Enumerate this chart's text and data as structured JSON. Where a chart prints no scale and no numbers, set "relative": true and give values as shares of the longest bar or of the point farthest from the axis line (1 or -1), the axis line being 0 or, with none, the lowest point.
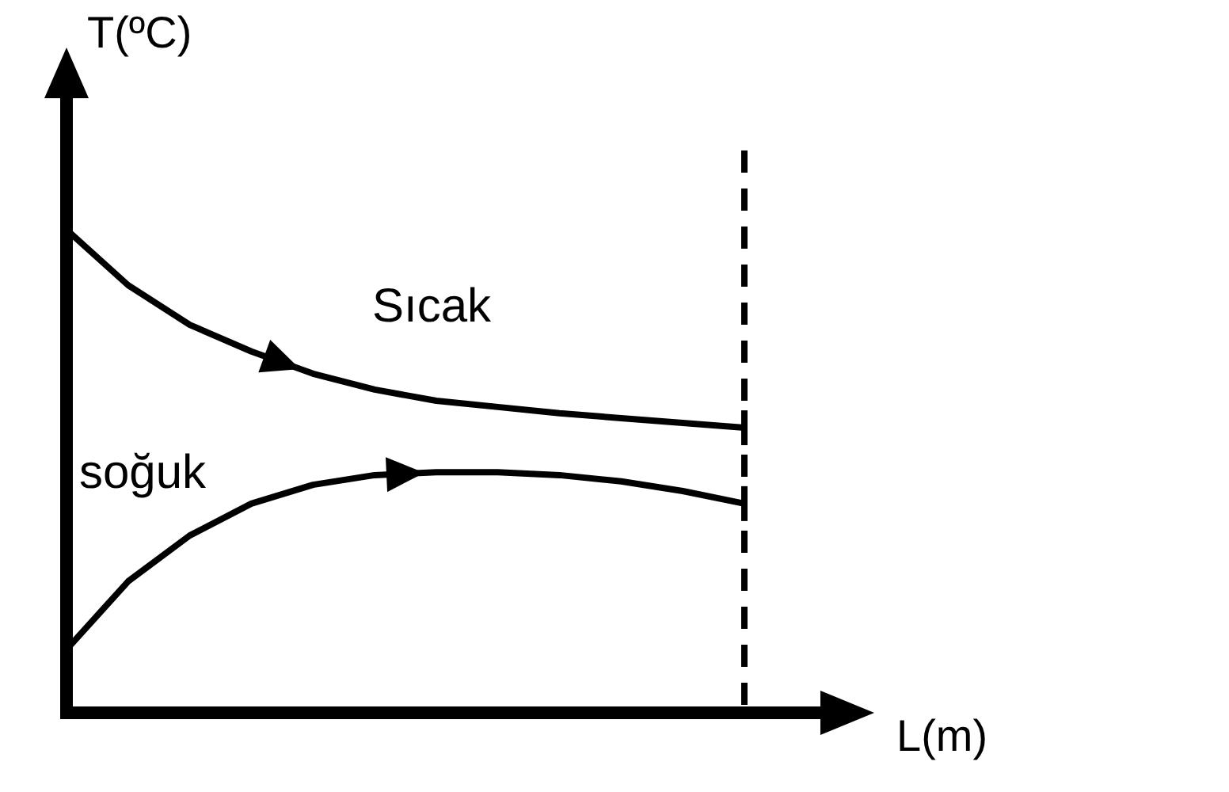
{
  "chart_data": {
    "type": "line",
    "relative": true,
    "xlabel": "L(m)",
    "ylabel": "T(ºC)",
    "marker": "none",
    "line_style": "solid",
    "categories": [
      null,
      null,
      null,
      null,
      null,
      null,
      null,
      null,
      null,
      null,
      null,
      null
    ],
    "series": [
      {
        "name": "Sıcak",
        "color": "#000000",
        "values": [
          1,
          0.885,
          0.803,
          0.748,
          0.702,
          0.669,
          0.646,
          0.633,
          0.62,
          0.61,
          0.6,
          0.59
        ]
      },
      {
        "name": "soğuk",
        "color": "#000000",
        "values": [
          0.131,
          0.272,
          0.367,
          0.433,
          0.472,
          0.492,
          0.498,
          0.498,
          0.492,
          0.479,
          0.459,
          0.433
        ]
      }
    ],
    "ref_lines": [
      {
        "axis": "x",
        "color": "#000000",
        "line_style": "dashed"
      }
    ]
  }
}
